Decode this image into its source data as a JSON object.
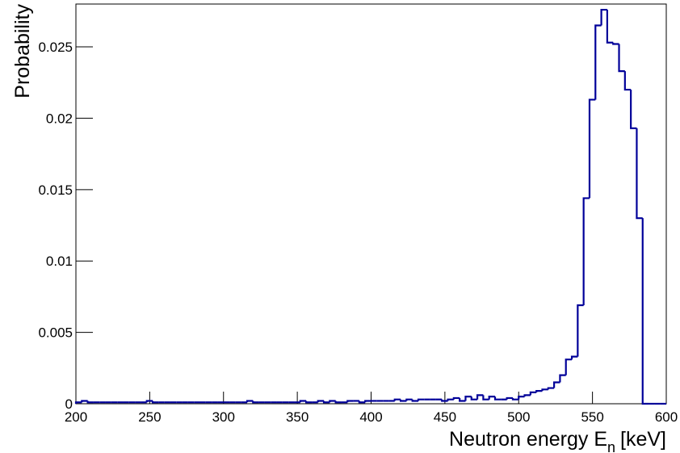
{
  "chart_data": {
    "type": "histogram",
    "xlabel": "Neutron energy E",
    "xlabel_subscript": "n",
    "xlabel_unit": "[keV]",
    "ylabel": "Probability",
    "color": "#000099",
    "xlim": [
      200,
      600
    ],
    "ylim": [
      0,
      0.028
    ],
    "xticks": [
      200,
      250,
      300,
      350,
      400,
      450,
      500,
      550,
      600
    ],
    "yticks": [
      0,
      0.005,
      0.01,
      0.015,
      0.02,
      0.025
    ],
    "bins": [
      200,
      204,
      208,
      212,
      216,
      220,
      224,
      228,
      232,
      236,
      240,
      244,
      248,
      252,
      256,
      260,
      264,
      268,
      272,
      276,
      280,
      284,
      288,
      292,
      296,
      300,
      304,
      308,
      312,
      316,
      320,
      324,
      328,
      332,
      336,
      340,
      344,
      348,
      352,
      356,
      360,
      364,
      368,
      372,
      376,
      380,
      384,
      388,
      392,
      396,
      400,
      404,
      408,
      412,
      416,
      420,
      424,
      428,
      432,
      436,
      440,
      444,
      448,
      452,
      456,
      460,
      464,
      468,
      472,
      476,
      480,
      484,
      488,
      492,
      496,
      500,
      504,
      508,
      512,
      516,
      520,
      524,
      528,
      532,
      536,
      540,
      544,
      548,
      552,
      556,
      560,
      564,
      568,
      572,
      576,
      580,
      584,
      588,
      592,
      596,
      600
    ],
    "counts": [
      0.0001,
      0.0002,
      0.0001,
      0.0001,
      0.0001,
      0.0001,
      0.0001,
      0.0001,
      0.0001,
      0.0001,
      0.0001,
      0.0001,
      0.0002,
      0.0001,
      0.0001,
      0.0001,
      0.0001,
      0.0001,
      0.0001,
      0.0001,
      0.0001,
      0.0001,
      0.0001,
      0.0001,
      0.0001,
      0.0001,
      0.0001,
      0.0001,
      0.0001,
      0.0002,
      0.0001,
      0.0001,
      0.0001,
      0.0001,
      0.0001,
      0.0001,
      0.0001,
      0.0001,
      0.0002,
      0.0001,
      0.0001,
      0.0002,
      0.0001,
      0.0002,
      0.0001,
      0.0001,
      0.0002,
      0.0002,
      0.0001,
      0.0002,
      0.0002,
      0.0002,
      0.0002,
      0.0002,
      0.0003,
      0.0002,
      0.0003,
      0.0002,
      0.0003,
      0.0003,
      0.0003,
      0.0003,
      0.0002,
      0.0003,
      0.0004,
      0.0002,
      0.0005,
      0.0003,
      0.0006,
      0.0003,
      0.0005,
      0.0003,
      0.0003,
      0.0004,
      0.0003,
      0.0005,
      0.0006,
      0.0008,
      0.0009,
      0.001,
      0.0011,
      0.0015,
      0.002,
      0.0031,
      0.0033,
      0.0069,
      0.0144,
      0.0213,
      0.0265,
      0.0276,
      0.0253,
      0.0252,
      0.0233,
      0.022,
      0.0193,
      0.013,
      0,
      0,
      0,
      0
    ]
  }
}
